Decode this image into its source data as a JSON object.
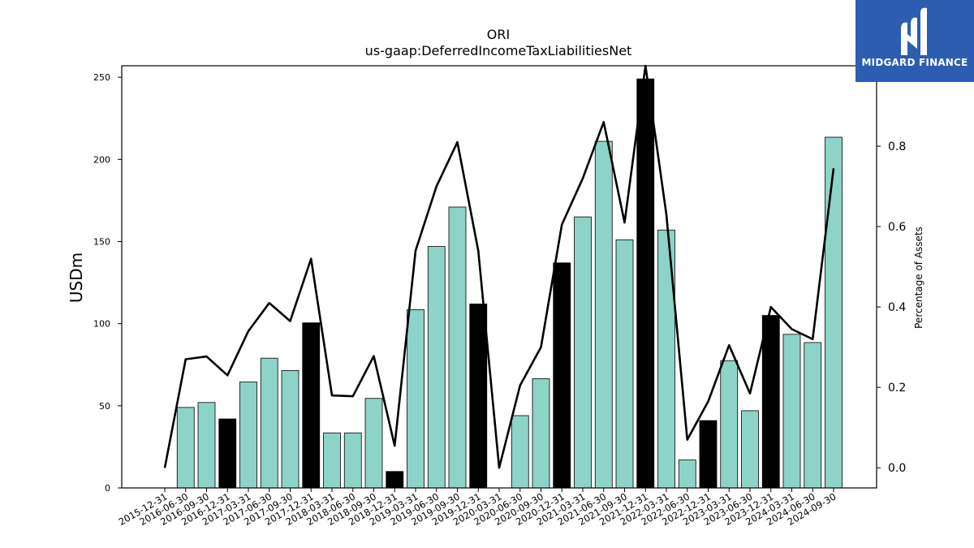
{
  "chart_data": {
    "type": "bar+line",
    "title": "ORI",
    "subtitle": "us-gaap:DeferredIncomeTaxLiabilitiesNet",
    "ylabel": "USDm",
    "y2label": "Percentage of Assets",
    "ylim": [
      0,
      257
    ],
    "y2lim": [
      -0.05,
      1.0
    ],
    "yticks": [
      0,
      50,
      100,
      150,
      200,
      250
    ],
    "y2ticks": [
      0.0,
      0.2,
      0.4,
      0.6,
      0.8
    ],
    "y2tick_labels": [
      "0.0",
      "0.2",
      "0.4",
      "0.6",
      "0.8"
    ],
    "categories": [
      "2015-12-31",
      "2016-06-30",
      "2016-09-30",
      "2016-12-31",
      "2017-03-31",
      "2017-06-30",
      "2017-09-30",
      "2017-12-31",
      "2018-03-31",
      "2018-06-30",
      "2018-09-30",
      "2018-12-31",
      "2019-03-31",
      "2019-06-30",
      "2019-09-30",
      "2019-12-31",
      "2020-03-31",
      "2020-06-30",
      "2020-09-30",
      "2020-12-31",
      "2021-03-31",
      "2021-06-30",
      "2021-09-30",
      "2021-12-31",
      "2022-03-31",
      "2022-06-30",
      "2022-12-31",
      "2023-03-31",
      "2023-06-30",
      "2023-12-31",
      "2024-03-31",
      "2024-06-30",
      "2024-09-30"
    ],
    "series": [
      {
        "kind": "bar",
        "values": [
          0,
          49,
          52,
          42,
          64.5,
          79,
          71.5,
          100.5,
          33.5,
          33.5,
          54.5,
          10,
          108.5,
          147,
          171,
          112,
          0,
          44,
          66.5,
          137,
          165,
          211,
          151,
          249,
          157,
          17,
          41,
          77.5,
          47,
          105,
          93.5,
          88.5,
          213.5
        ],
        "highlight": [
          false,
          false,
          false,
          true,
          false,
          false,
          false,
          true,
          false,
          false,
          false,
          true,
          false,
          false,
          false,
          true,
          false,
          false,
          false,
          true,
          false,
          false,
          false,
          true,
          false,
          false,
          true,
          false,
          false,
          true,
          false,
          false,
          false
        ]
      },
      {
        "kind": "line",
        "axis": "right",
        "values": [
          0.0,
          0.27,
          0.277,
          0.23,
          0.34,
          0.41,
          0.365,
          0.52,
          0.18,
          0.178,
          0.278,
          0.055,
          0.54,
          0.7,
          0.81,
          0.54,
          0.0,
          0.205,
          0.3,
          0.605,
          0.72,
          0.86,
          0.61,
          1.0,
          0.63,
          0.07,
          0.165,
          0.305,
          0.185,
          0.4,
          0.345,
          0.32,
          0.745
        ]
      }
    ],
    "colors": {
      "bar": "#8dd3c7",
      "highlight_bar": "#000000",
      "line": "#000000"
    },
    "grid": false,
    "legend": "none"
  },
  "logo": {
    "text": "MIDGARD FINANCE",
    "background": "#2c5db0"
  }
}
